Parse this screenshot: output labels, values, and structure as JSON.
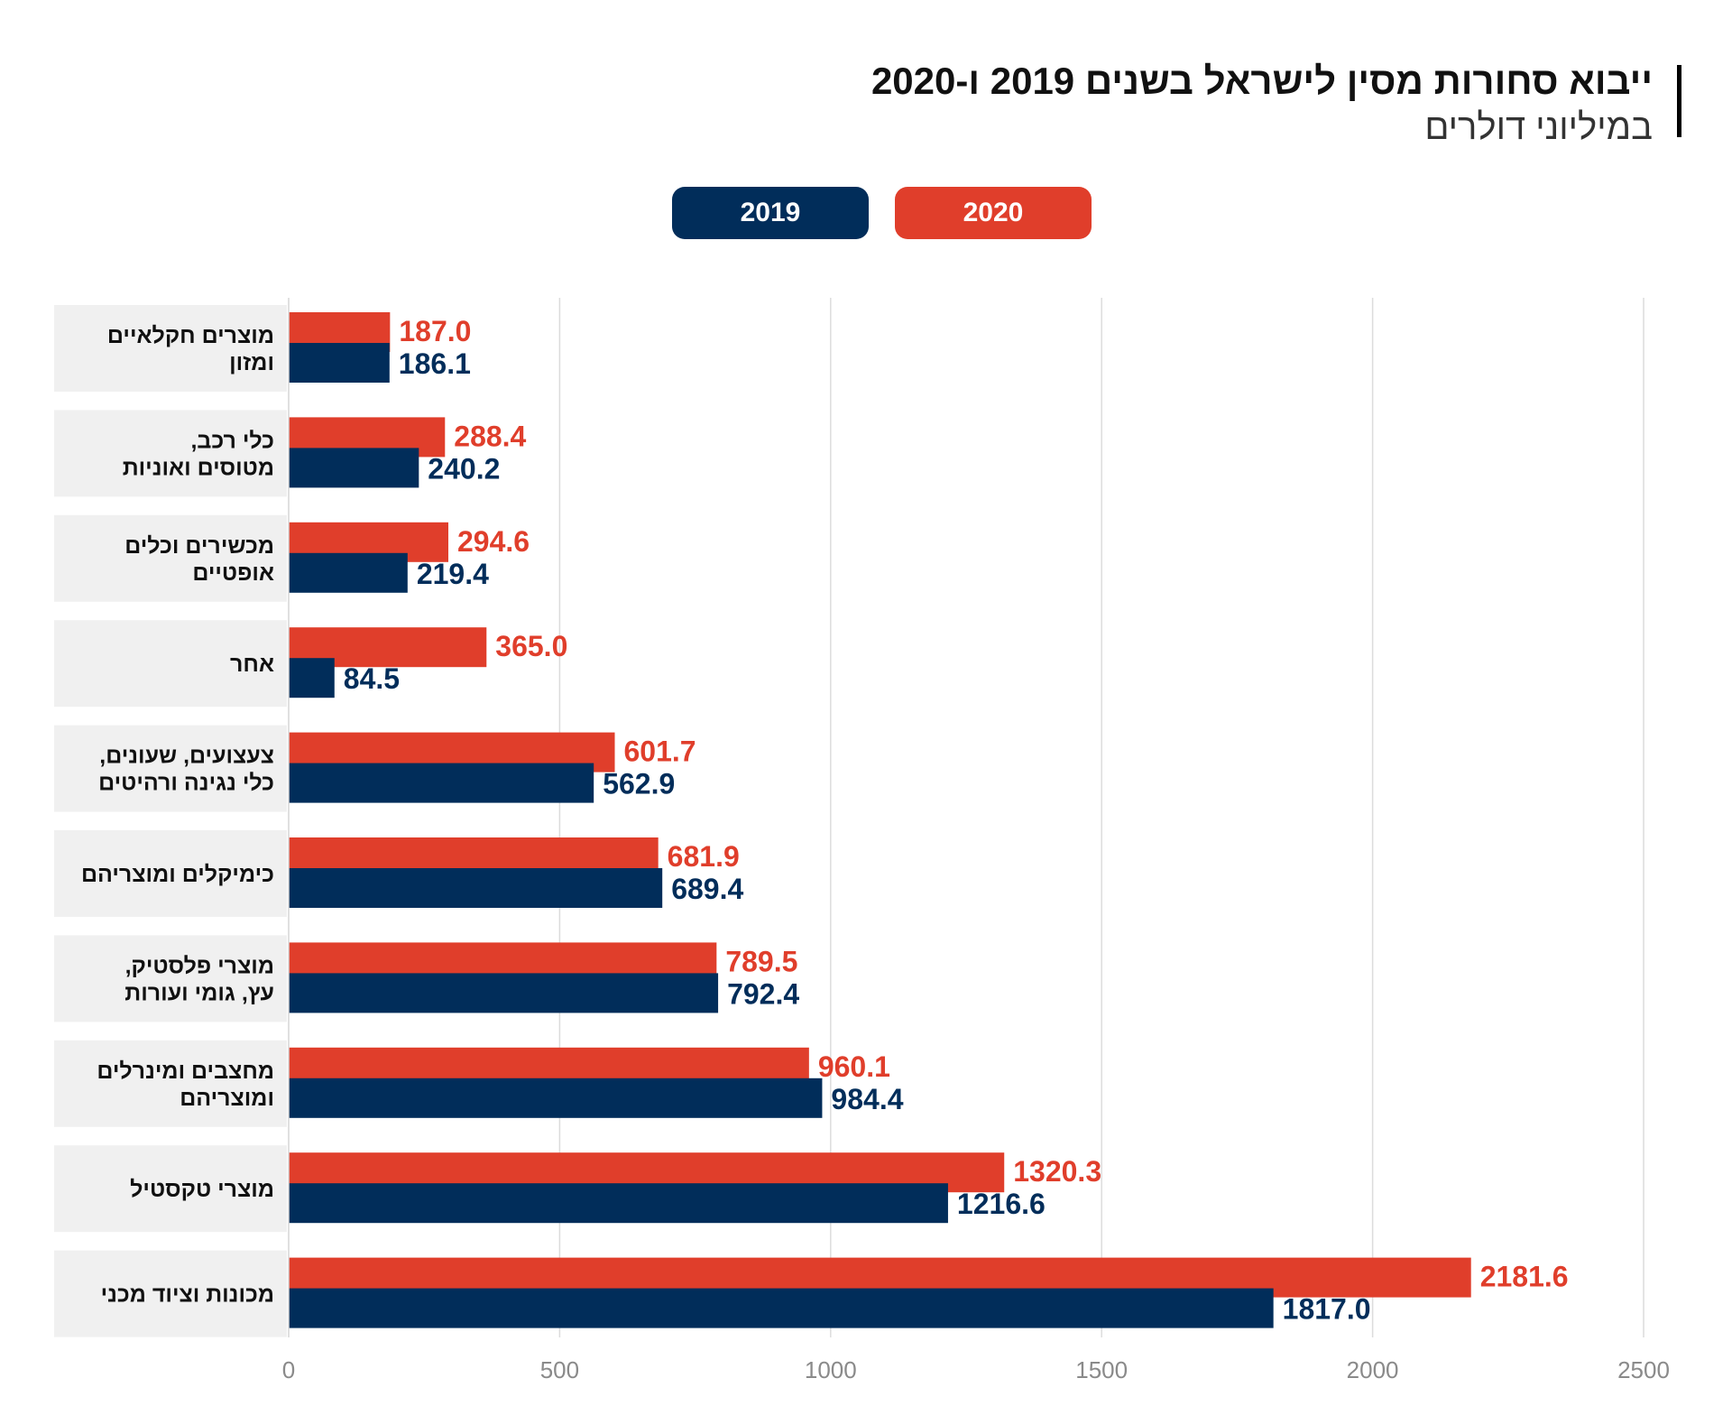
{
  "title": "ייבוא סחורות מסין לישראל בשנים 2019 ו-2020",
  "subtitle": "במיליוני דולרים",
  "legend": [
    {
      "label": "2019",
      "color": "#012d5a"
    },
    {
      "label": "2020",
      "color": "#e03e2b"
    }
  ],
  "chart_data": {
    "type": "bar",
    "orientation": "horizontal",
    "categories": [
      [
        "מוצרים חקלאיים",
        "ומזון"
      ],
      [
        "כלי רכב,",
        "מטוסים ואוניות"
      ],
      [
        "מכשירים וכלים",
        "אופטיים"
      ],
      [
        "אחר"
      ],
      [
        "צעצועים, שעונים,",
        "כלי נגינה ורהיטים"
      ],
      [
        "כימיקלים ומוצריהם"
      ],
      [
        "מוצרי פלסטיק,",
        "עץ, גומי ועורות"
      ],
      [
        "מחצבים ומינרלים",
        "ומוצריהם"
      ],
      [
        "מוצרי טקסטיל"
      ],
      [
        "מכונות וציוד מכני"
      ]
    ],
    "series": [
      {
        "name": "2020",
        "color": "#e03e2b",
        "values": [
          187.0,
          288.4,
          294.6,
          365.0,
          601.7,
          681.9,
          789.5,
          960.1,
          1320.3,
          2181.6
        ],
        "labels": [
          "187.0",
          "288.4",
          "294.6",
          "365.0",
          "601.7",
          "681.9",
          "789.5",
          "960.1",
          "1320.3",
          "2181.6"
        ]
      },
      {
        "name": "2019",
        "color": "#012d5a",
        "values": [
          186.1,
          240.2,
          219.4,
          84.5,
          562.9,
          689.4,
          792.4,
          984.4,
          1216.6,
          1817.0
        ],
        "labels": [
          "186.1",
          "240.2",
          "219.4",
          "84.5",
          "562.9",
          "689.4",
          "792.4",
          "984.4",
          "1216.6",
          "1817.0"
        ]
      }
    ],
    "xlim": [
      0,
      2500
    ],
    "xticks": [
      0,
      500,
      1000,
      1500,
      2000,
      2500
    ],
    "grid": true,
    "legend_position": "top"
  }
}
